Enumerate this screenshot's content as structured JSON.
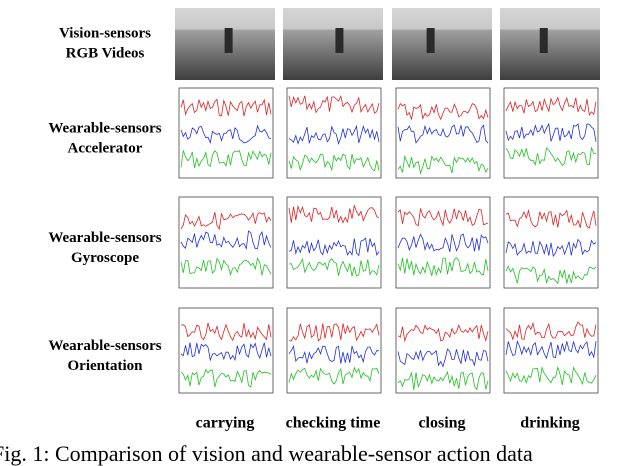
{
  "figure": {
    "row_labels": [
      [
        "Vision-sensors",
        "RGB Videos"
      ],
      [
        "Wearable-sensors",
        "Accelerator"
      ],
      [
        "Wearable-sensors",
        "Gyroscope"
      ],
      [
        "Wearable-sensors",
        "Orientation"
      ]
    ],
    "column_labels": [
      "carrying",
      "checking time",
      "closing",
      "drinking"
    ],
    "caption": "Fig. 1: Comparison of vision and wearable-sensor action data"
  }
}
